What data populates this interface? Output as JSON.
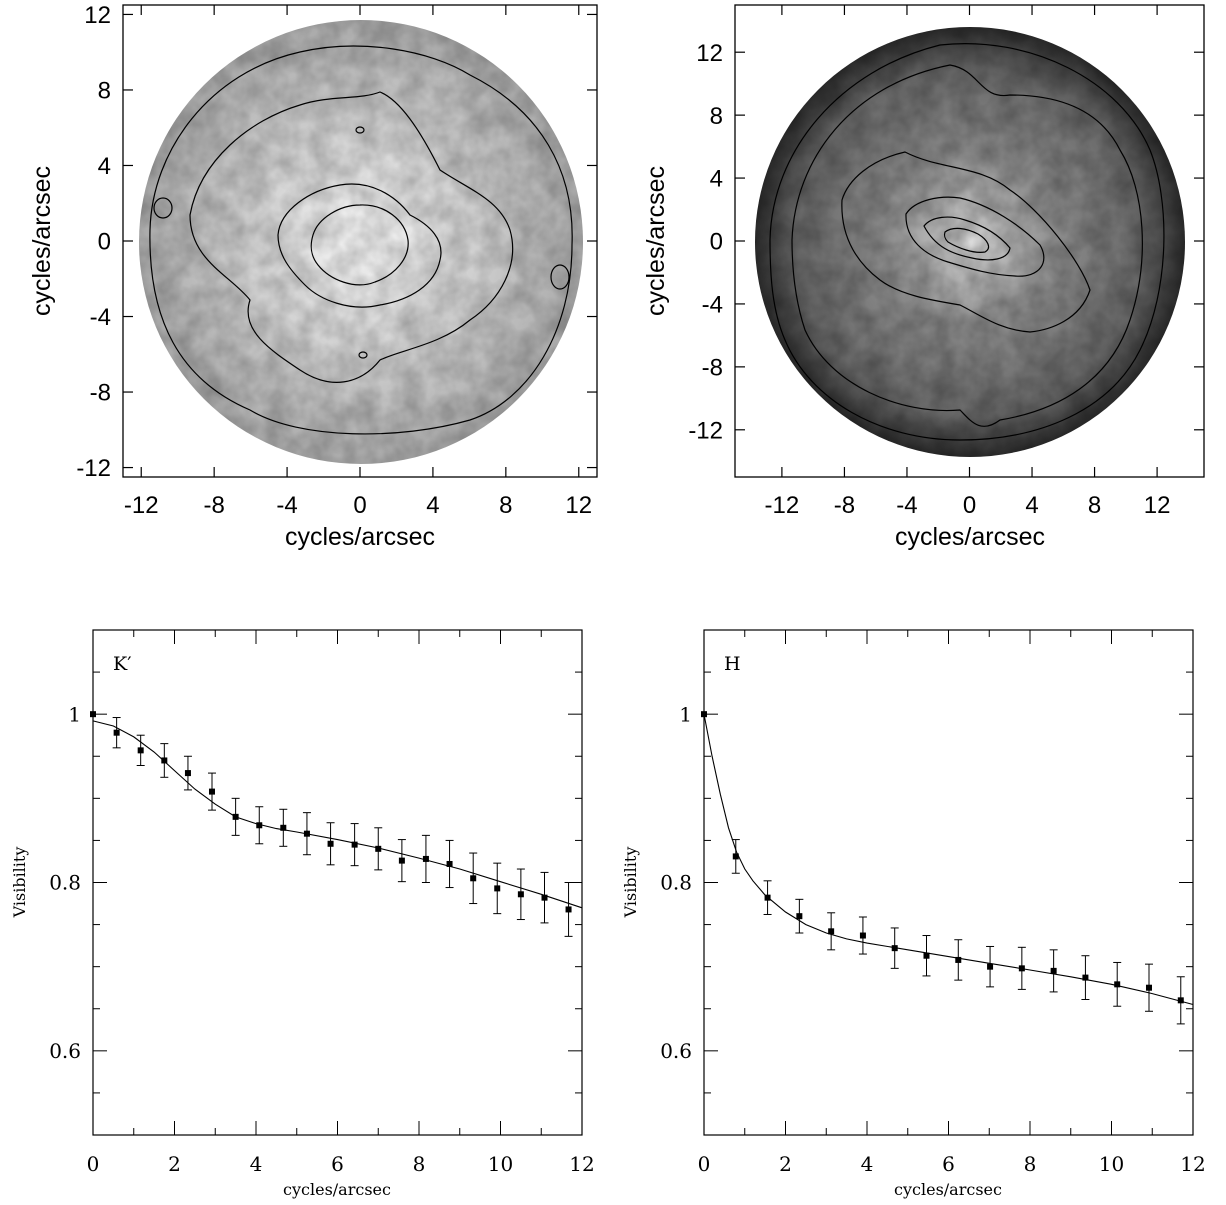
{
  "chart_data": [
    {
      "type": "heatmap",
      "panel": "top-left",
      "xlabel": "cycles/arcsec",
      "ylabel": "cycles/arcsec",
      "xlim": [
        -13,
        13
      ],
      "ylim": [
        -12.5,
        12.5
      ],
      "xticks": [
        "-12",
        "-8",
        "-4",
        "0",
        "4",
        "8",
        "12"
      ],
      "yticks": [
        "12",
        "8",
        "4",
        "0",
        "-4",
        "-8",
        "-12"
      ],
      "xtick_values": [
        -12,
        -8,
        -4,
        0,
        4,
        8,
        12
      ],
      "ytick_values": [
        12,
        8,
        4,
        0,
        -4,
        -8,
        -12
      ],
      "grid": false,
      "colormap": "grayscale",
      "description_visible": "circular visibility map of radius ~12 with contours"
    },
    {
      "type": "heatmap",
      "panel": "top-right",
      "xlabel": "cycles/arcsec",
      "ylabel": "cycles/arcsec",
      "xlim": [
        -15,
        15
      ],
      "ylim": [
        -15,
        15
      ],
      "xticks": [
        "-12",
        "-8",
        "-4",
        "0",
        "4",
        "8",
        "12"
      ],
      "yticks": [
        "12",
        "8",
        "4",
        "0",
        "-4",
        "-8",
        "-12"
      ],
      "xtick_values": [
        -12,
        -8,
        -4,
        0,
        4,
        8,
        12
      ],
      "ytick_values": [
        12,
        8,
        4,
        0,
        -4,
        -8,
        -12
      ],
      "grid": false,
      "colormap": "grayscale",
      "description_visible": "circular visibility map of radius ~14 with contours"
    },
    {
      "type": "line",
      "panel": "bottom-left",
      "annotation": "K′",
      "xlabel": "cycles/arcsec",
      "ylabel": "Visibility",
      "xlim": [
        0,
        12
      ],
      "ylim": [
        0.5,
        1.1
      ],
      "xticks": [
        "0",
        "2",
        "4",
        "6",
        "8",
        "10",
        "12"
      ],
      "yticks": [
        "1",
        "0.8",
        "0.6"
      ],
      "xtick_values": [
        0,
        2,
        4,
        6,
        8,
        10,
        12
      ],
      "ytick_values": [
        1,
        0.8,
        0.6
      ],
      "grid": false,
      "series": [
        {
          "kind": "points_with_errorbars",
          "x": [
            0,
            0.58,
            1.17,
            1.75,
            2.33,
            2.92,
            3.5,
            4.08,
            4.67,
            5.25,
            5.83,
            6.42,
            7.0,
            7.58,
            8.17,
            8.75,
            9.33,
            9.92,
            10.5,
            11.08,
            11.67
          ],
          "y": [
            1.0,
            0.978,
            0.957,
            0.945,
            0.93,
            0.908,
            0.878,
            0.868,
            0.865,
            0.858,
            0.846,
            0.845,
            0.84,
            0.826,
            0.828,
            0.822,
            0.805,
            0.793,
            0.786,
            0.782,
            0.768
          ],
          "err": [
            0,
            0.018,
            0.018,
            0.02,
            0.02,
            0.022,
            0.022,
            0.022,
            0.022,
            0.025,
            0.025,
            0.025,
            0.025,
            0.025,
            0.028,
            0.028,
            0.03,
            0.03,
            0.03,
            0.03,
            0.032
          ]
        },
        {
          "kind": "model_curve",
          "x": [
            0,
            0.5,
            1,
            1.5,
            2,
            2.5,
            3,
            3.5,
            4,
            4.5,
            5,
            6,
            7,
            8,
            9,
            10,
            11,
            12
          ],
          "y": [
            0.992,
            0.986,
            0.973,
            0.955,
            0.933,
            0.911,
            0.893,
            0.878,
            0.87,
            0.864,
            0.86,
            0.851,
            0.841,
            0.829,
            0.816,
            0.801,
            0.786,
            0.77
          ]
        }
      ]
    },
    {
      "type": "line",
      "panel": "bottom-right",
      "annotation": "H",
      "xlabel": "cycles/arcsec",
      "ylabel": "Visibility",
      "xlim": [
        0,
        12
      ],
      "ylim": [
        0.5,
        1.1
      ],
      "xticks": [
        "0",
        "2",
        "4",
        "6",
        "8",
        "10",
        "12"
      ],
      "yticks": [
        "1",
        "0.8",
        "0.6"
      ],
      "xtick_values": [
        0,
        2,
        4,
        6,
        8,
        10,
        12
      ],
      "ytick_values": [
        1,
        0.8,
        0.6
      ],
      "grid": false,
      "series": [
        {
          "kind": "points_with_errorbars",
          "x": [
            0,
            0.78,
            1.56,
            2.34,
            3.12,
            3.9,
            4.68,
            5.46,
            6.24,
            7.02,
            7.8,
            8.58,
            9.36,
            10.14,
            10.92,
            11.7
          ],
          "y": [
            1.0,
            0.831,
            0.782,
            0.76,
            0.742,
            0.737,
            0.722,
            0.713,
            0.708,
            0.7,
            0.698,
            0.695,
            0.687,
            0.679,
            0.675,
            0.66
          ],
          "err": [
            0,
            0.02,
            0.02,
            0.02,
            0.022,
            0.022,
            0.024,
            0.024,
            0.024,
            0.024,
            0.025,
            0.025,
            0.026,
            0.026,
            0.028,
            0.028
          ]
        },
        {
          "kind": "model_curve",
          "x": [
            0,
            0.2,
            0.4,
            0.6,
            0.8,
            1.0,
            1.2,
            1.5,
            2,
            2.5,
            3,
            3.5,
            4,
            5,
            6,
            7,
            8,
            9,
            10,
            11,
            12
          ],
          "y": [
            1.0,
            0.95,
            0.905,
            0.865,
            0.836,
            0.816,
            0.802,
            0.785,
            0.765,
            0.75,
            0.74,
            0.733,
            0.728,
            0.72,
            0.712,
            0.704,
            0.696,
            0.688,
            0.679,
            0.668,
            0.655
          ]
        }
      ]
    }
  ]
}
